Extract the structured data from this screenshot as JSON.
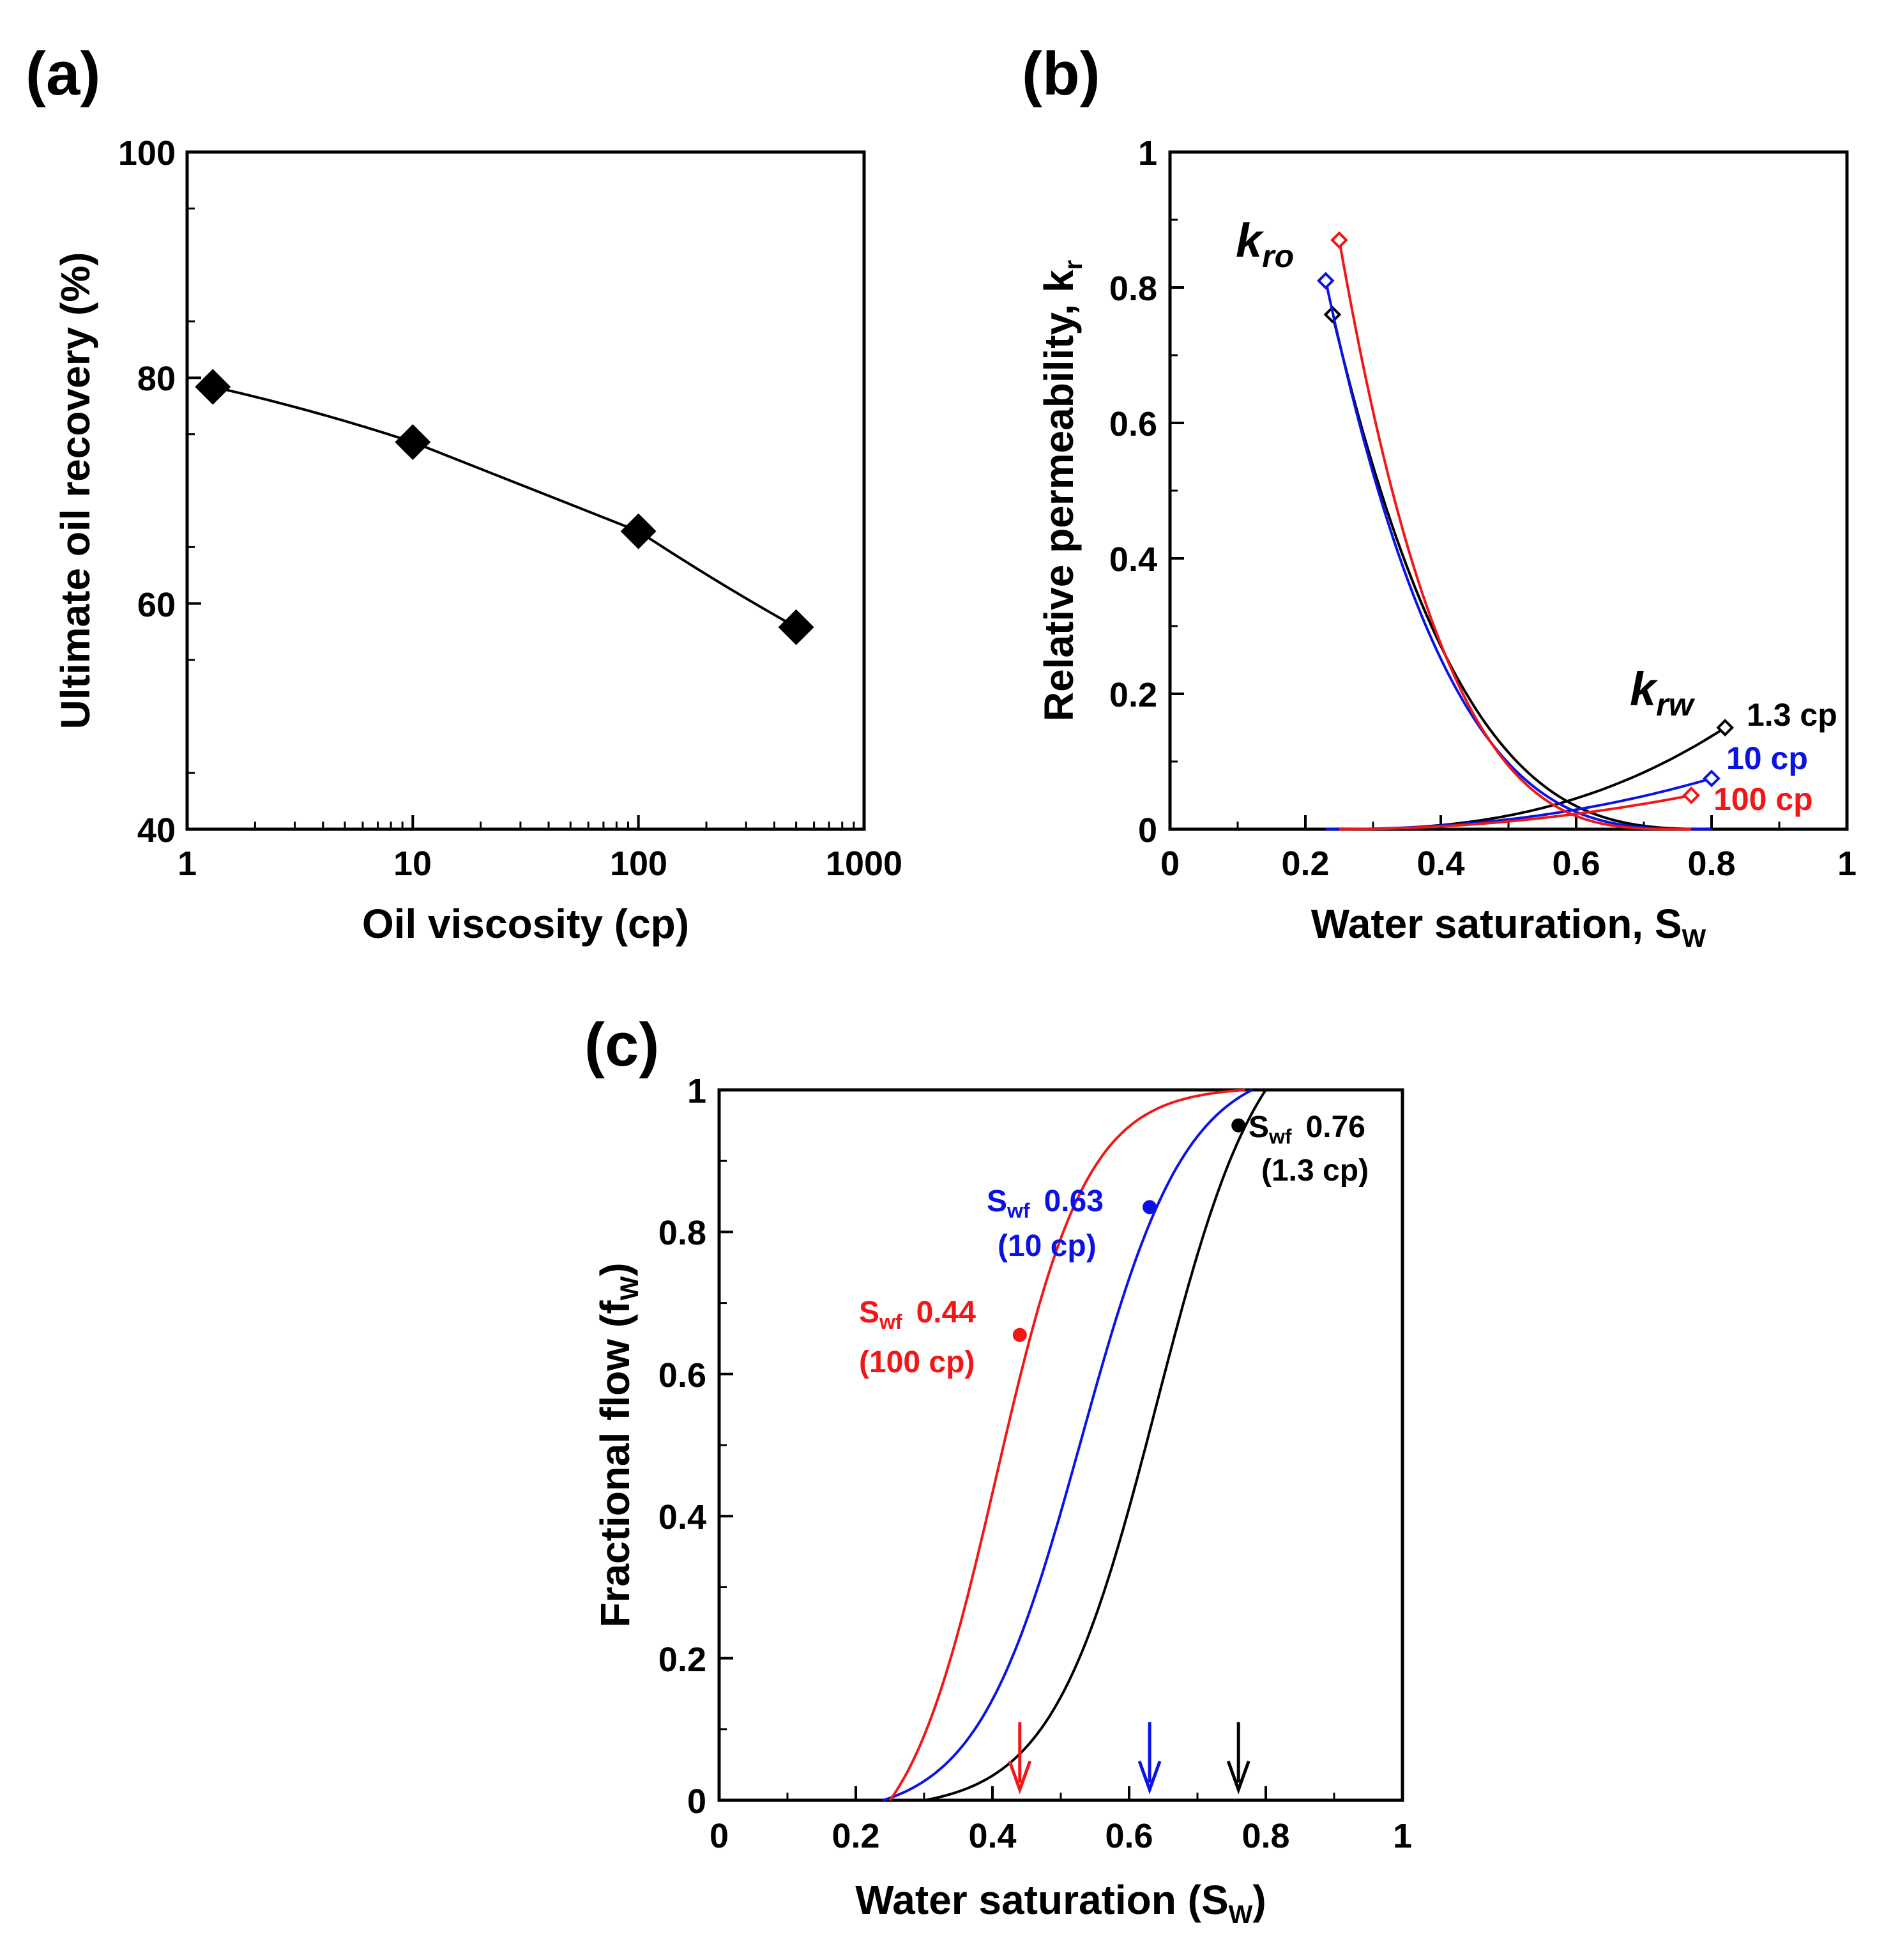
{
  "figure": {
    "panels": [
      "(a)",
      "(b)",
      "(c)"
    ]
  },
  "colors": {
    "axis": "#000000",
    "black_series": "#000000",
    "blue_series": "#0a12e6",
    "red_series": "#f21616"
  },
  "chart_data": [
    {
      "id": "a",
      "panel_label": "(a)",
      "type": "line",
      "xscale": "log",
      "xlim": [
        1,
        1000
      ],
      "ylim": [
        40,
        100
      ],
      "xticks": [
        1,
        10,
        100,
        1000
      ],
      "xtick_labels": [
        "1",
        "10",
        "100",
        "1000"
      ],
      "yticks": [
        40,
        60,
        80,
        100
      ],
      "ytick_labels": [
        "40",
        "60",
        "80",
        "100"
      ],
      "xlabel": "Oil viscosity (cp)",
      "ylabel": "Ultimate oil recovery (%)",
      "marker": "diamond",
      "series": [
        {
          "name": "recovery",
          "x": [
            1.3,
            10,
            100,
            500
          ],
          "y": [
            79.2,
            74.3,
            66.4,
            57.9
          ]
        }
      ]
    },
    {
      "id": "b",
      "panel_label": "(b)",
      "type": "line",
      "xlim": [
        0,
        1
      ],
      "ylim": [
        0,
        1
      ],
      "xticks": [
        0,
        0.2,
        0.4,
        0.6,
        0.8,
        1
      ],
      "xtick_labels": [
        "0",
        "0.2",
        "0.4",
        "0.6",
        "0.8",
        "1"
      ],
      "yticks": [
        0,
        0.2,
        0.4,
        0.6,
        0.8,
        1
      ],
      "ytick_labels": [
        "0",
        "0.2",
        "0.4",
        "0.6",
        "0.8",
        "1"
      ],
      "xlabel": "Water saturation, S",
      "xlabel_sub": "W",
      "ylabel": "Relative permeability, k",
      "ylabel_sub": "r",
      "kro_label": "k",
      "kro_sub": "ro",
      "krw_label": "k",
      "krw_sub": "rw",
      "series": [
        {
          "name": "1.3 cp",
          "color": "black",
          "swc": 0.24,
          "sor_end": 0.82,
          "kro_end": 0.76,
          "krw_end": 0.15,
          "no": 3.2,
          "nw": 2.5
        },
        {
          "name": "10 cp",
          "color": "blue",
          "swc": 0.23,
          "sor_end": 0.8,
          "kro_end": 0.81,
          "krw_end": 0.075,
          "no": 3.3,
          "nw": 2.2
        },
        {
          "name": "100 cp",
          "color": "red",
          "swc": 0.25,
          "sor_end": 0.77,
          "kro_end": 0.87,
          "krw_end": 0.05,
          "no": 3.4,
          "nw": 2.0
        }
      ]
    },
    {
      "id": "c",
      "panel_label": "(c)",
      "type": "line",
      "xlim": [
        0,
        1
      ],
      "ylim": [
        0,
        1
      ],
      "xticks": [
        0,
        0.2,
        0.4,
        0.6,
        0.8,
        1
      ],
      "xtick_labels": [
        "0",
        "0.2",
        "0.4",
        "0.6",
        "0.8",
        "1"
      ],
      "yticks": [
        0,
        0.2,
        0.4,
        0.6,
        0.8,
        1
      ],
      "ytick_labels": [
        "0",
        "0.2",
        "0.4",
        "0.6",
        "0.8",
        "1"
      ],
      "xlabel": "Water saturation (S",
      "xlabel_sub": "W",
      "xlabel_end": ")",
      "ylabel": "Fractional flow (f",
      "ylabel_sub": "W",
      "ylabel_end": ")",
      "series": [
        {
          "name": "1.3 cp",
          "color": "black",
          "start": 0.3,
          "end": 0.8,
          "mid": 0.64,
          "steep": 13,
          "swf": 0.76,
          "fw_at_swf": 0.95,
          "annot_value": "0.76",
          "annot_cp": "(1.3 cp)"
        },
        {
          "name": "10 cp",
          "color": "blue",
          "start": 0.24,
          "end": 0.78,
          "mid": 0.53,
          "steep": 13,
          "swf": 0.63,
          "fw_at_swf": 0.835,
          "annot_value": "0.63",
          "annot_cp": "(10 cp)"
        },
        {
          "name": "100 cp",
          "color": "red",
          "start": 0.25,
          "end": 0.77,
          "mid": 0.405,
          "steep": 15,
          "swf": 0.44,
          "fw_at_swf": 0.655,
          "annot_value": "0.44",
          "annot_cp": "(100 cp)"
        }
      ],
      "annot_symbol": "S",
      "annot_symbol_sub": "wf"
    }
  ]
}
